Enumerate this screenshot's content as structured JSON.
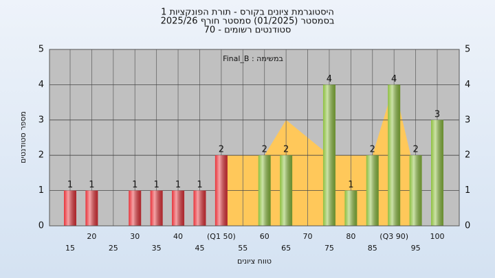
{
  "chart_data": {
    "type": "bar",
    "title": "היסטוגרמת ציונים בקורס - תורת הפונקציות 1",
    "subtitle": "בסמסטר  (01/2025)  סמסטר חורף 2025/26",
    "subtitle2": "סטודנטים רשומים - 70",
    "annotation": "Final_B : במשימה",
    "x_label": "טווח ציונים",
    "y_label": "מספר סטודנטים",
    "categories": [
      "15",
      "20",
      "25",
      "30",
      "35",
      "40",
      "45",
      "(Q1 50)",
      "55",
      "60",
      "65",
      "70",
      "75",
      "80",
      "85",
      "(Q3 90)",
      "95",
      "100"
    ],
    "values": [
      1,
      1,
      0,
      1,
      1,
      1,
      1,
      2,
      0,
      2,
      2,
      0,
      4,
      1,
      2,
      4,
      2,
      3
    ],
    "colors": [
      "#e8333a",
      "#e8333a",
      "#e8333a",
      "#e8333a",
      "#e8333a",
      "#e8333a",
      "#e8333a",
      "#e8333a",
      "#8dbf3f",
      "#8dbf3f",
      "#8dbf3f",
      "#8dbf3f",
      "#8dbf3f",
      "#8dbf3f",
      "#8dbf3f",
      "#8dbf3f",
      "#8dbf3f",
      "#8dbf3f"
    ],
    "area": {
      "color": "#ffc85a",
      "x": [
        50,
        60,
        65,
        73,
        75,
        85,
        90,
        95
      ],
      "values": [
        2,
        2,
        3,
        2.2,
        2,
        2,
        4,
        1.4
      ]
    },
    "ylim": [
      0,
      5
    ],
    "yticks": [
      0,
      1,
      2,
      3,
      4,
      5
    ],
    "grid": true
  }
}
